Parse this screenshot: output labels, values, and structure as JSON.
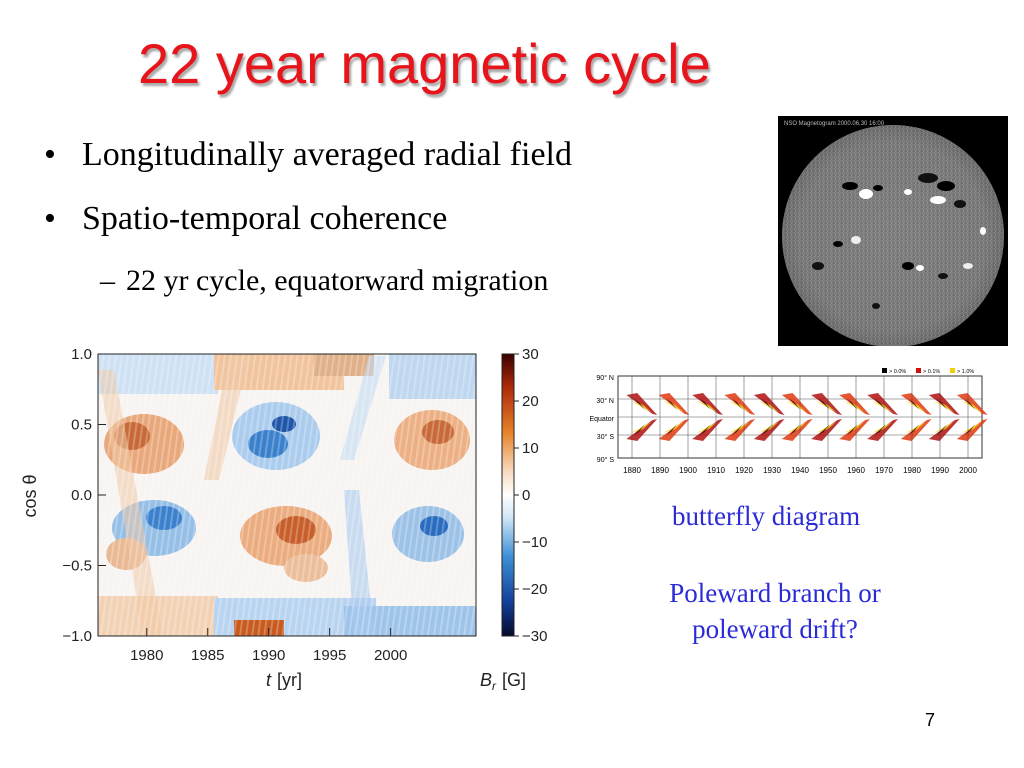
{
  "slide": {
    "title": "22 year magnetic cycle",
    "bullets": [
      "Longitudinally averaged radial field",
      "Spatio-temporal coherence"
    ],
    "sub_bullets": [
      "22 yr cycle, equatorward migration"
    ],
    "bullet_glyph": "•",
    "sub_glyph": "–",
    "page_number": "7"
  },
  "magnetogram": {
    "header_text": "NSO Magnetogram 2000.06.30 16:00"
  },
  "butterfly": {
    "caption": "butterfly diagram",
    "lat_labels": [
      "90° N",
      "30° N",
      "Equator",
      "30° S",
      "90° S"
    ],
    "year_labels": [
      "1880",
      "1890",
      "1900",
      "1910",
      "1920",
      "1930",
      "1940",
      "1950",
      "1960",
      "1970",
      "1980",
      "1990",
      "2000"
    ],
    "legend": [
      "> 0.0%",
      "> 0.1%",
      "> 1.0%"
    ]
  },
  "question": {
    "lines": [
      "Poleward branch or",
      "poleward drift?"
    ]
  },
  "chart_data": {
    "type": "heatmap",
    "x": {
      "label_symbol": "t",
      "label_unit": "[yr]",
      "ticks": [
        "1980",
        "1985",
        "1990",
        "1995",
        "2000"
      ],
      "range": [
        1976,
        2007
      ]
    },
    "y": {
      "label": "cos θ",
      "ticks": [
        "1.0",
        "0.5",
        "0.0",
        "−0.5",
        "−1.0"
      ],
      "range": [
        -1.0,
        1.0
      ]
    },
    "colorbar": {
      "label_symbol": "B",
      "label_sub": "r",
      "label_unit": "[G]",
      "ticks": [
        "30",
        "20",
        "10",
        "0",
        "−10",
        "−20",
        "−30"
      ],
      "range": [
        -30,
        30
      ]
    }
  }
}
